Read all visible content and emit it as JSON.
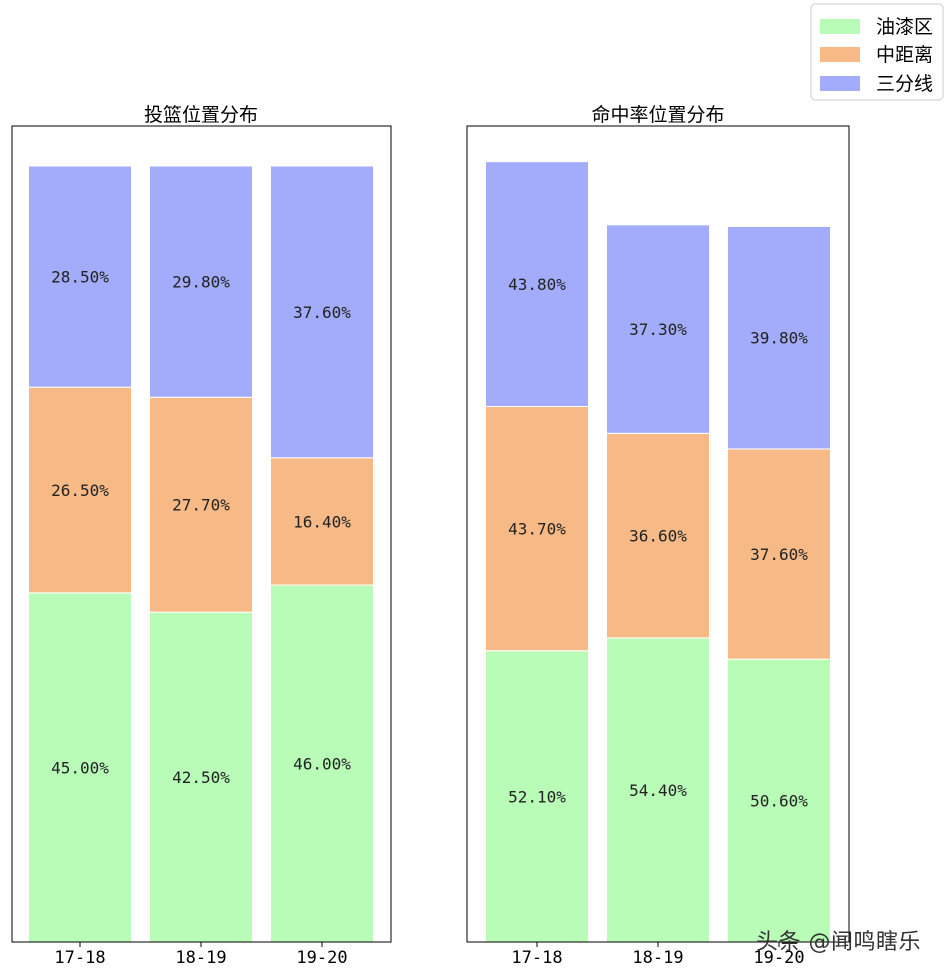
{
  "colors": {
    "paint": "#b8fcb8",
    "mid": "#f7ba87",
    "three": "#a3acfb"
  },
  "legend": {
    "placement": "top-right",
    "items": [
      {
        "label": "油漆区",
        "color": "#b8fcb8"
      },
      {
        "label": "中距离",
        "color": "#f7ba87"
      },
      {
        "label": "三分线",
        "color": "#a3acfb"
      }
    ]
  },
  "watermark": "头条 @闻鸣瞎乐",
  "chart_data": [
    {
      "type": "bar",
      "stacked": true,
      "title": "投篮位置分布",
      "categories": [
        "17-18",
        "18-19",
        "19-20"
      ],
      "ylim": [
        0,
        100
      ],
      "grid": false,
      "series": [
        {
          "name": "油漆区",
          "values": [
            45.0,
            42.5,
            46.0
          ],
          "labels": [
            "45.00%",
            "42.50%",
            "46.00%"
          ]
        },
        {
          "name": "中距离",
          "values": [
            26.5,
            27.7,
            16.4
          ],
          "labels": [
            "26.50%",
            "27.70%",
            "16.40%"
          ]
        },
        {
          "name": "三分线",
          "values": [
            28.5,
            29.8,
            37.6
          ],
          "labels": [
            "28.50%",
            "29.80%",
            "37.60%"
          ]
        }
      ]
    },
    {
      "type": "bar",
      "stacked": true,
      "title": "命中率位置分布",
      "categories": [
        "17-18",
        "18-19",
        "19-20"
      ],
      "ylim": [
        0,
        140
      ],
      "grid": false,
      "series": [
        {
          "name": "油漆区",
          "values": [
            52.1,
            54.4,
            50.6
          ],
          "labels": [
            "52.10%",
            "54.40%",
            "50.60%"
          ]
        },
        {
          "name": "中距离",
          "values": [
            43.7,
            36.6,
            37.6
          ],
          "labels": [
            "43.70%",
            "36.60%",
            "37.60%"
          ]
        },
        {
          "name": "三分线",
          "values": [
            43.8,
            37.3,
            39.8
          ],
          "labels": [
            "43.80%",
            "37.30%",
            "39.80%"
          ]
        }
      ]
    }
  ]
}
